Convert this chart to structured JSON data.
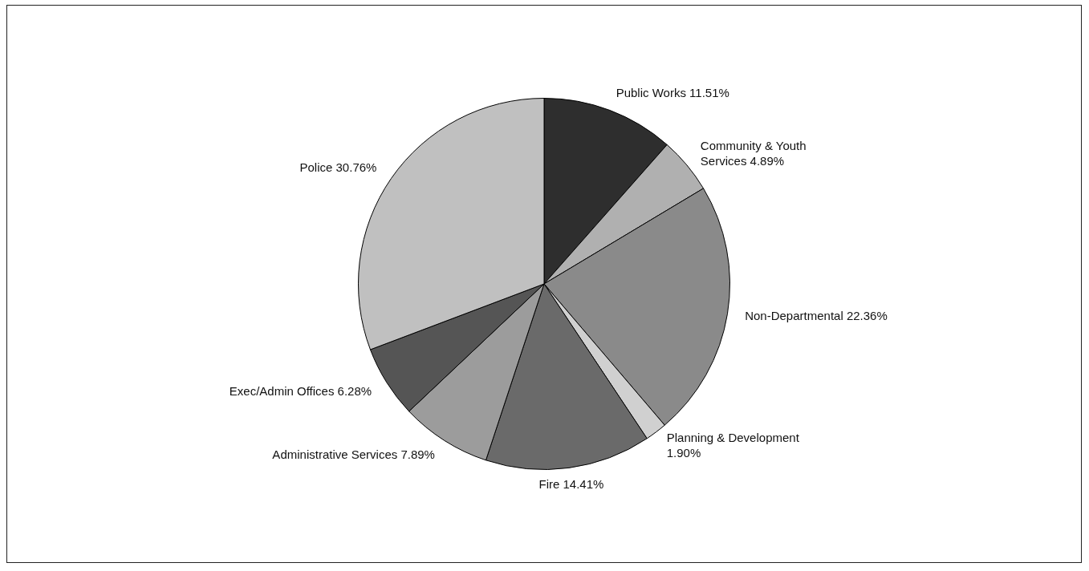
{
  "chart_data": {
    "type": "pie",
    "categories": [
      "Public Works",
      "Community & Youth Services",
      "Non-Departmental",
      "Planning & Development",
      "Fire",
      "Administrative Services",
      "Exec/Admin Offices",
      "Police"
    ],
    "values": [
      11.51,
      4.89,
      22.36,
      1.9,
      14.41,
      7.89,
      6.28,
      30.76
    ],
    "value_labels": [
      "11.51%",
      "4.89%",
      "22.36%",
      "1.90%",
      "14.41%",
      "7.89%",
      "6.28%",
      "30.76%"
    ],
    "colors": [
      "#2e2e2e",
      "#b0b0b0",
      "#8a8a8a",
      "#d0d0d0",
      "#6a6a6a",
      "#9c9c9c",
      "#555555",
      "#c0c0c0"
    ],
    "legend": false
  }
}
